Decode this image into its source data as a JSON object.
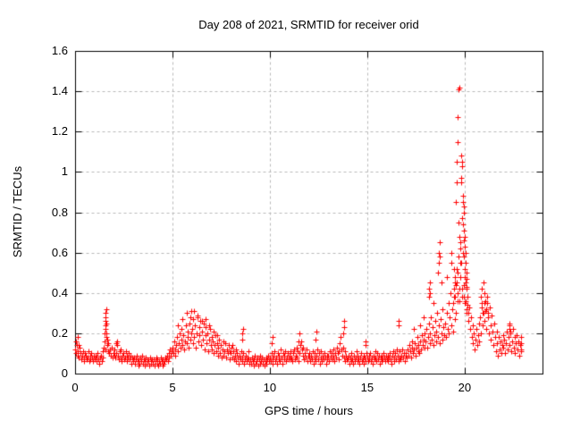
{
  "chart_data": {
    "type": "scatter",
    "title": "Day 208 of 2021, SRMTID for receiver orid",
    "xlabel": "GPS time / hours",
    "ylabel": "SRMTID / TECUs",
    "xlim": [
      0,
      24
    ],
    "ylim": [
      0,
      1.6
    ],
    "xticks": [
      0,
      5,
      10,
      15,
      20
    ],
    "xtick_labels": [
      "0",
      "5",
      "10",
      "15",
      "20"
    ],
    "yticks": [
      0,
      0.2,
      0.4,
      0.6,
      0.8,
      1,
      1.2,
      1.4,
      1.6
    ],
    "ytick_labels": [
      "0",
      "0.2",
      "0.4",
      "0.6",
      "0.8",
      "1",
      "1.2",
      "1.4",
      "1.6"
    ],
    "grid": "dashed",
    "legend": "none",
    "marker": "plus",
    "colors": {
      "marker": "#ff0000",
      "grid": "#b8b8b8",
      "frame": "#000000",
      "text": "#000000",
      "background": "#ffffff"
    },
    "series": {
      "name": "SRMTID",
      "x_start": 0,
      "x_step": 0.04,
      "y_hours": [
        [
          0.12,
          0.1,
          0.14,
          0.09,
          0.11,
          0.08,
          0.13,
          0.1,
          0.07,
          0.09,
          0.11,
          0.08,
          0.06,
          0.1,
          0.09,
          0.07,
          0.08,
          0.11,
          0.06,
          0.09,
          0.07,
          0.1,
          0.08,
          0.06,
          0.09
        ],
        [
          0.07,
          0.09,
          0.06,
          0.08,
          0.1,
          0.07,
          0.05,
          0.08,
          0.09,
          0.06,
          0.11,
          0.08,
          0.13,
          0.16,
          0.12,
          0.18,
          0.14,
          0.11,
          0.15,
          0.1,
          0.12,
          0.09,
          0.13,
          0.08,
          0.1
        ],
        [
          0.09,
          0.12,
          0.08,
          0.1,
          0.14,
          0.09,
          0.07,
          0.11,
          0.08,
          0.12,
          0.06,
          0.09,
          0.1,
          0.07,
          0.08,
          0.11,
          0.09,
          0.06,
          0.08,
          0.1,
          0.07,
          0.09,
          0.05,
          0.08,
          0.07
        ],
        [
          0.06,
          0.08,
          0.05,
          0.07,
          0.09,
          0.06,
          0.04,
          0.07,
          0.05,
          0.08,
          0.06,
          0.09,
          0.05,
          0.07,
          0.04,
          0.06,
          0.08,
          0.05,
          0.07,
          0.06,
          0.04,
          0.08,
          0.06,
          0.05,
          0.07
        ],
        [
          0.05,
          0.07,
          0.04,
          0.06,
          0.08,
          0.05,
          0.07,
          0.04,
          0.06,
          0.05,
          0.08,
          0.06,
          0.04,
          0.07,
          0.05,
          0.06,
          0.08,
          0.07,
          0.09,
          0.06,
          0.08,
          0.1,
          0.12,
          0.09,
          0.11
        ],
        [
          0.13,
          0.1,
          0.16,
          0.12,
          0.09,
          0.14,
          0.18,
          0.11,
          0.15,
          0.2,
          0.13,
          0.17,
          0.22,
          0.14,
          0.19,
          0.12,
          0.16,
          0.24,
          0.15,
          0.21,
          0.18,
          0.13,
          0.25,
          0.17,
          0.2
        ],
        [
          0.22,
          0.15,
          0.27,
          0.18,
          0.24,
          0.13,
          0.2,
          0.28,
          0.16,
          0.23,
          0.19,
          0.26,
          0.14,
          0.21,
          0.17,
          0.25,
          0.12,
          0.19,
          0.23,
          0.15,
          0.2,
          0.11,
          0.17,
          0.22,
          0.14
        ],
        [
          0.18,
          0.12,
          0.16,
          0.1,
          0.14,
          0.19,
          0.11,
          0.15,
          0.09,
          0.13,
          0.17,
          0.1,
          0.14,
          0.08,
          0.12,
          0.16,
          0.09,
          0.11,
          0.15,
          0.08,
          0.12,
          0.1,
          0.14,
          0.07,
          0.11
        ],
        [
          0.1,
          0.13,
          0.08,
          0.11,
          0.07,
          0.09,
          0.12,
          0.06,
          0.1,
          0.08,
          0.05,
          0.09,
          0.07,
          0.11,
          0.06,
          0.08,
          0.1,
          0.05,
          0.07,
          0.09,
          0.06,
          0.08,
          0.11,
          0.07,
          0.05
        ],
        [
          0.07,
          0.05,
          0.08,
          0.06,
          0.04,
          0.07,
          0.09,
          0.05,
          0.06,
          0.08,
          0.04,
          0.07,
          0.05,
          0.09,
          0.06,
          0.08,
          0.05,
          0.07,
          0.04,
          0.06,
          0.08,
          0.05,
          0.07,
          0.09,
          0.06
        ],
        [
          0.08,
          0.06,
          0.1,
          0.07,
          0.05,
          0.09,
          0.11,
          0.06,
          0.08,
          0.05,
          0.1,
          0.07,
          0.09,
          0.06,
          0.12,
          0.08,
          0.05,
          0.1,
          0.07,
          0.09,
          0.11,
          0.06,
          0.08,
          0.1,
          0.07
        ],
        [
          0.09,
          0.07,
          0.11,
          0.08,
          0.06,
          0.1,
          0.12,
          0.07,
          0.09,
          0.13,
          0.08,
          0.11,
          0.06,
          0.1,
          0.14,
          0.16,
          0.12,
          0.09,
          0.13,
          0.07,
          0.1,
          0.08,
          0.12,
          0.06,
          0.09
        ],
        [
          0.08,
          0.1,
          0.06,
          0.09,
          0.07,
          0.11,
          0.05,
          0.08,
          0.1,
          0.06,
          0.09,
          0.12,
          0.07,
          0.1,
          0.05,
          0.08,
          0.11,
          0.06,
          0.09,
          0.07,
          0.1,
          0.08,
          0.05,
          0.09,
          0.07
        ],
        [
          0.09,
          0.06,
          0.11,
          0.08,
          0.1,
          0.07,
          0.12,
          0.09,
          0.06,
          0.1,
          0.08,
          0.13,
          0.1,
          0.07,
          0.11,
          0.15,
          0.18,
          0.12,
          0.09,
          0.13,
          0.08,
          0.11,
          0.06,
          0.09,
          0.07
        ],
        [
          0.07,
          0.09,
          0.05,
          0.08,
          0.06,
          0.1,
          0.07,
          0.05,
          0.09,
          0.06,
          0.08,
          0.11,
          0.06,
          0.09,
          0.07,
          0.05,
          0.08,
          0.1,
          0.06,
          0.07,
          0.09,
          0.05,
          0.08,
          0.06,
          0.1
        ],
        [
          0.08,
          0.06,
          0.09,
          0.07,
          0.1,
          0.06,
          0.08,
          0.05,
          0.09,
          0.07,
          0.11,
          0.08,
          0.06,
          0.1,
          0.07,
          0.09,
          0.05,
          0.08,
          0.06,
          0.09,
          0.07,
          0.1,
          0.08,
          0.06,
          0.09
        ],
        [
          0.07,
          0.09,
          0.06,
          0.08,
          0.1,
          0.07,
          0.05,
          0.09,
          0.11,
          0.08,
          0.06,
          0.1,
          0.07,
          0.12,
          0.09,
          0.06,
          0.08,
          0.11,
          0.07,
          0.09,
          0.12,
          0.08,
          0.1,
          0.06,
          0.09
        ],
        [
          0.1,
          0.08,
          0.12,
          0.09,
          0.14,
          0.11,
          0.08,
          0.13,
          0.16,
          0.1,
          0.12,
          0.15,
          0.09,
          0.13,
          0.18,
          0.11,
          0.14,
          0.1,
          0.16,
          0.12,
          0.19,
          0.14,
          0.17,
          0.13,
          0.2
        ],
        [
          0.16,
          0.22,
          0.13,
          0.18,
          0.25,
          0.15,
          0.2,
          0.28,
          0.17,
          0.23,
          0.14,
          0.19,
          0.26,
          0.16,
          0.21,
          0.3,
          0.18,
          0.24,
          0.15,
          0.27,
          0.2,
          0.32,
          0.17,
          0.23,
          0.19
        ],
        [
          0.25,
          0.18,
          0.3,
          0.22,
          0.35,
          0.2,
          0.28,
          0.4,
          0.24,
          0.32,
          0.21,
          0.38,
          0.27,
          0.45,
          0.3,
          0.52,
          0.36,
          0.58,
          0.42,
          0.65,
          0.48,
          0.55,
          0.38,
          0.6,
          0.44
        ],
        [
          0.48,
          0.36,
          0.42,
          0.3,
          0.38,
          0.26,
          0.33,
          0.22,
          0.28,
          0.18,
          0.24,
          0.15,
          0.2,
          0.12,
          0.17,
          0.22,
          0.14,
          0.19,
          0.25,
          0.16,
          0.28,
          0.2,
          0.33,
          0.24,
          0.3
        ],
        [
          0.35,
          0.26,
          0.31,
          0.22,
          0.38,
          0.28,
          0.2,
          0.33,
          0.24,
          0.17,
          0.29,
          0.21,
          0.14,
          0.25,
          0.18,
          0.11,
          0.21,
          0.15,
          0.09,
          0.18,
          0.12,
          0.16,
          0.1,
          0.14,
          0.19
        ],
        [
          0.13,
          0.17,
          0.1,
          0.15,
          0.21,
          0.12,
          0.18,
          0.24,
          0.14,
          0.2,
          0.11,
          0.16,
          0.22,
          0.13,
          0.18,
          0.1,
          0.15,
          0.19,
          0.12,
          0.16,
          0.09,
          0.14,
          0.11
        ]
      ],
      "extra_points": [
        [
          0.05,
          0.16
        ],
        [
          0.12,
          0.18
        ],
        [
          0.2,
          0.14
        ],
        [
          1.52,
          0.2
        ],
        [
          1.56,
          0.22
        ],
        [
          1.56,
          0.24
        ],
        [
          1.57,
          0.26
        ],
        [
          1.58,
          0.28
        ],
        [
          1.58,
          0.3
        ],
        [
          1.59,
          0.32
        ],
        [
          1.6,
          0.25
        ],
        [
          1.62,
          0.2
        ],
        [
          1.64,
          0.17
        ],
        [
          2.1,
          0.15
        ],
        [
          2.16,
          0.16
        ],
        [
          5.3,
          0.24
        ],
        [
          5.5,
          0.27
        ],
        [
          5.72,
          0.3
        ],
        [
          5.9,
          0.28
        ],
        [
          5.96,
          0.31
        ],
        [
          6.1,
          0.31
        ],
        [
          6.3,
          0.29
        ],
        [
          6.5,
          0.26
        ],
        [
          6.7,
          0.27
        ],
        [
          6.9,
          0.24
        ],
        [
          7.1,
          0.21
        ],
        [
          7.3,
          0.19
        ],
        [
          8.08,
          0.14
        ],
        [
          8.56,
          0.17
        ],
        [
          8.6,
          0.2
        ],
        [
          8.62,
          0.22
        ],
        [
          10.08,
          0.15
        ],
        [
          10.12,
          0.18
        ],
        [
          11.48,
          0.16
        ],
        [
          11.52,
          0.2
        ],
        [
          12.36,
          0.17
        ],
        [
          12.4,
          0.21
        ],
        [
          13.76,
          0.2
        ],
        [
          13.8,
          0.23
        ],
        [
          13.82,
          0.26
        ],
        [
          14.9,
          0.14
        ],
        [
          14.92,
          0.16
        ],
        [
          16.6,
          0.24
        ],
        [
          16.62,
          0.26
        ],
        [
          17.4,
          0.22
        ],
        [
          17.7,
          0.24
        ],
        [
          17.9,
          0.28
        ],
        [
          18.16,
          0.38
        ],
        [
          18.18,
          0.42
        ],
        [
          18.2,
          0.45
        ],
        [
          18.22,
          0.4
        ],
        [
          18.4,
          0.35
        ],
        [
          18.64,
          0.5
        ],
        [
          18.66,
          0.55
        ],
        [
          18.68,
          0.6
        ],
        [
          18.7,
          0.65
        ],
        [
          18.72,
          0.58
        ],
        [
          18.8,
          0.45
        ],
        [
          19.1,
          0.48
        ],
        [
          19.3,
          0.55
        ],
        [
          19.32,
          0.6
        ],
        [
          19.4,
          0.35
        ],
        [
          19.44,
          0.42
        ],
        [
          19.46,
          0.52
        ],
        [
          19.48,
          0.38
        ],
        [
          19.52,
          0.48
        ],
        [
          19.54,
          0.44
        ],
        [
          19.58,
          0.45
        ],
        [
          19.62,
          0.5
        ],
        [
          19.66,
          0.4
        ],
        [
          19.72,
          0.36
        ],
        [
          19.76,
          0.48
        ],
        [
          19.56,
          0.85
        ],
        [
          19.58,
          0.95
        ],
        [
          19.6,
          1.05
        ],
        [
          19.62,
          1.15
        ],
        [
          19.66,
          1.27
        ],
        [
          19.7,
          1.41
        ],
        [
          19.72,
          1.42
        ],
        [
          19.68,
          0.75
        ],
        [
          19.74,
          0.68
        ],
        [
          19.78,
          0.62
        ],
        [
          19.8,
          0.55
        ],
        [
          19.82,
          0.97
        ],
        [
          19.84,
          1.08
        ],
        [
          19.84,
          0.95
        ],
        [
          19.86,
          1.05
        ],
        [
          19.88,
          1.03
        ],
        [
          19.88,
          0.77
        ],
        [
          19.9,
          0.88
        ],
        [
          19.92,
          0.85
        ],
        [
          19.92,
          0.74
        ],
        [
          19.94,
          0.83
        ],
        [
          19.96,
          0.8
        ],
        [
          19.96,
          0.66
        ],
        [
          19.98,
          0.71
        ],
        [
          19.98,
          0.58
        ],
        [
          20.0,
          0.68
        ],
        [
          20.02,
          0.63
        ],
        [
          20.02,
          0.52
        ],
        [
          20.04,
          0.6
        ],
        [
          20.04,
          0.45
        ],
        [
          20.06,
          0.55
        ],
        [
          20.08,
          0.5
        ],
        [
          20.08,
          0.32
        ],
        [
          20.1,
          0.47
        ],
        [
          20.12,
          0.43
        ],
        [
          20.14,
          0.38
        ],
        [
          20.16,
          0.34
        ],
        [
          20.18,
          0.3
        ],
        [
          19.86,
          0.42
        ],
        [
          19.94,
          0.38
        ],
        [
          20.0,
          0.35
        ],
        [
          20.85,
          0.38
        ],
        [
          20.88,
          0.35
        ],
        [
          20.9,
          0.42
        ],
        [
          20.92,
          0.3
        ],
        [
          20.95,
          0.45
        ],
        [
          21.0,
          0.4
        ],
        [
          21.05,
          0.36
        ],
        [
          21.1,
          0.32
        ],
        [
          21.15,
          0.35
        ],
        [
          21.2,
          0.3
        ],
        [
          22.28,
          0.22
        ],
        [
          22.32,
          0.25
        ],
        [
          22.36,
          0.21
        ],
        [
          22.88,
          0.18
        ],
        [
          22.9,
          0.15
        ],
        [
          22.92,
          0.12
        ]
      ]
    }
  }
}
